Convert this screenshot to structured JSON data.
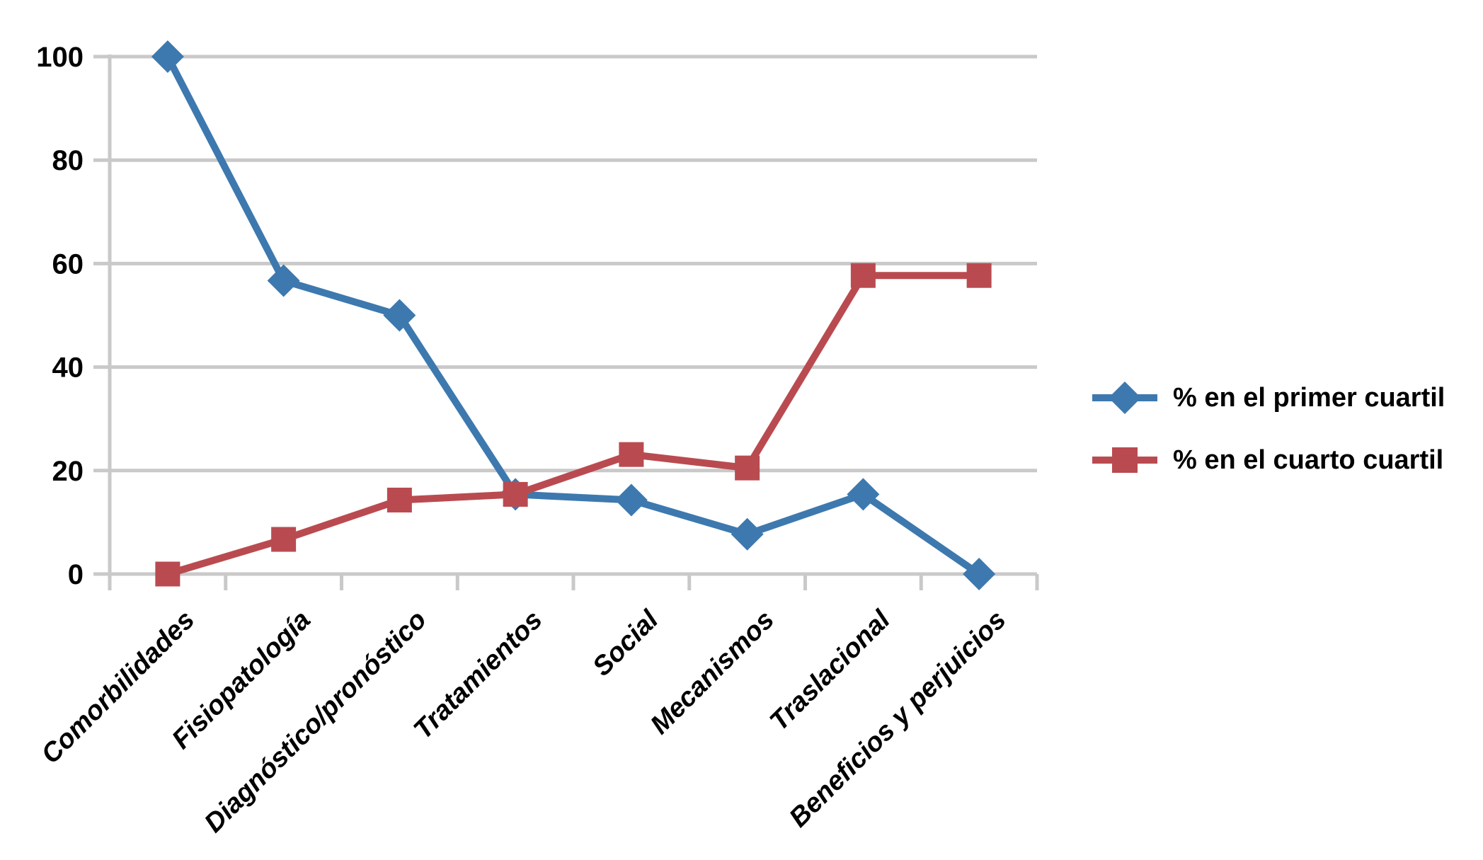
{
  "chart_data": {
    "type": "line",
    "categories": [
      "Comorbilidades",
      "Fisiopatología",
      "Diagnóstico/pronóstico",
      "Tratamientos",
      "Social",
      "Mecanismos",
      "Traslacional",
      "Beneficios y perjuicios"
    ],
    "series": [
      {
        "name": "% en el primer cuartil",
        "color": "#3D79AE",
        "marker": "diamond",
        "values": [
          100,
          56.7,
          50,
          15.4,
          14.3,
          7.7,
          15.4,
          0
        ]
      },
      {
        "name": "% en el cuarto cuartil",
        "color": "#B94B50",
        "marker": "square",
        "values": [
          0,
          6.7,
          14.3,
          15.4,
          23.1,
          20.5,
          57.7,
          57.7
        ]
      }
    ],
    "title": "",
    "xlabel": "",
    "ylabel": "",
    "ylim": [
      0,
      100
    ],
    "yticks": [
      0,
      20,
      40,
      60,
      80,
      100
    ],
    "grid": "horizontal",
    "legend_position": "right"
  },
  "colors": {
    "background": "#FFFFFF",
    "gridline": "#C9C9C9",
    "axis": "#C9C9C9",
    "text": "#000000",
    "series_blue": "#3D79AE",
    "series_red": "#B94B50"
  },
  "legend": {
    "marker_icons": [
      "diamond-marker-icon",
      "square-marker-icon"
    ]
  }
}
